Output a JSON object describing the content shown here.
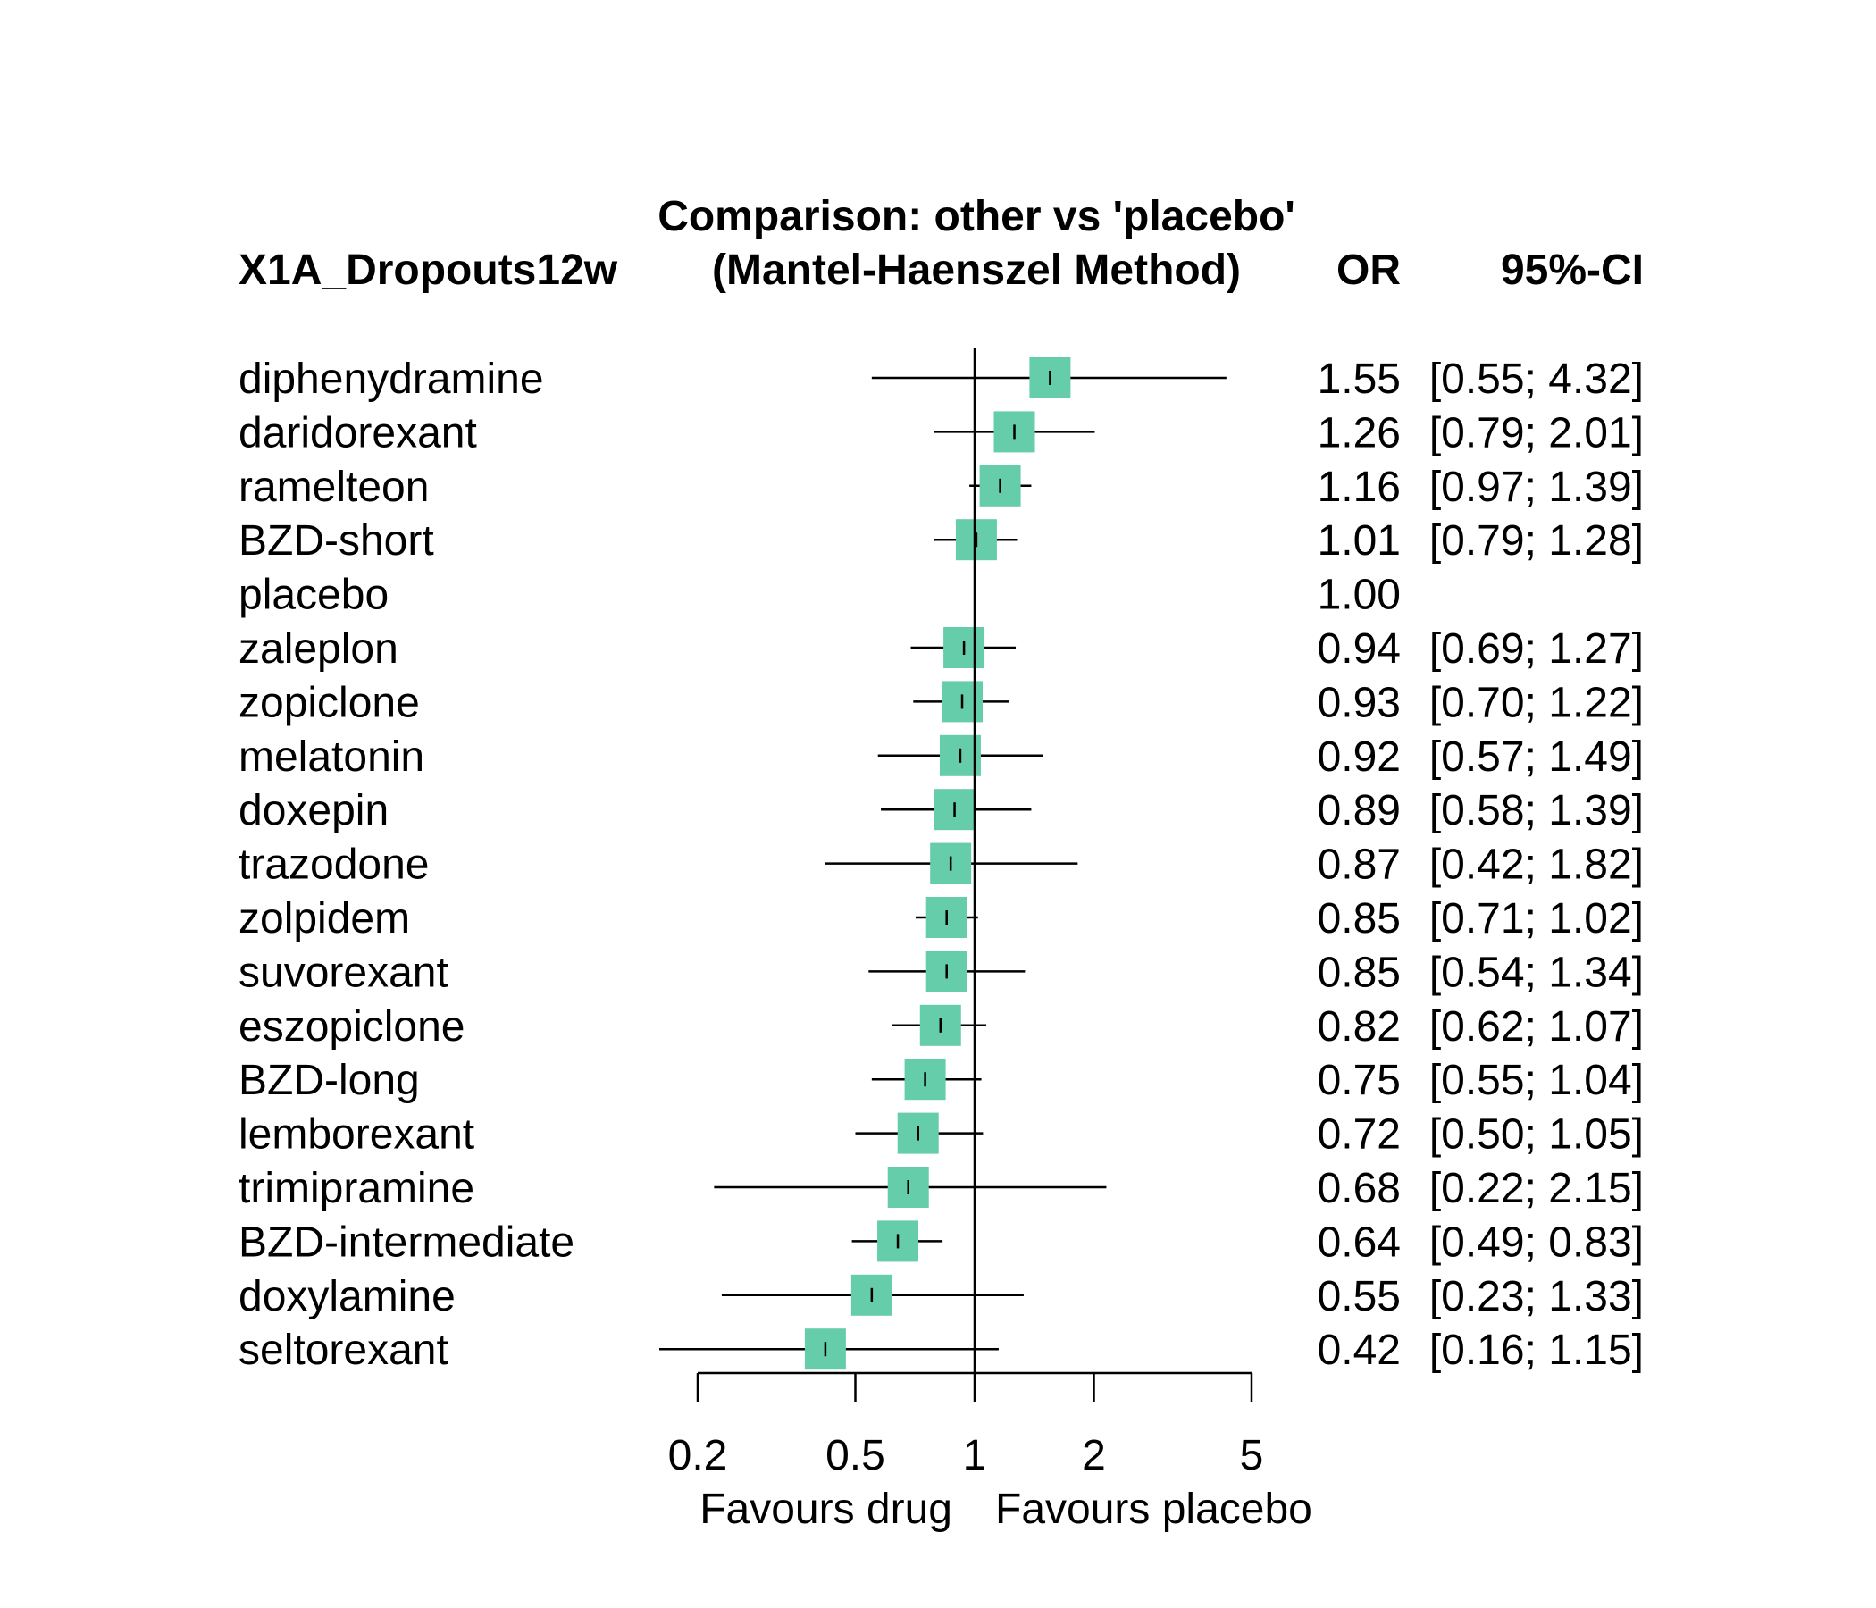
{
  "chart_data": {
    "type": "forest",
    "title": "Comparison: other vs 'placebo'",
    "subtitle": "(Mantel-Haenszel Method)",
    "outcome_label": "X1A_Dropouts12w",
    "or_header": "OR",
    "ci_header": "95%-CI",
    "x_scale": "log",
    "xlim": [
      0.2,
      5
    ],
    "x_ticks": [
      0.2,
      0.5,
      1,
      2,
      5
    ],
    "x_tick_labels": [
      "0.2",
      "0.5",
      "1",
      "2",
      "5"
    ],
    "xlabel_left": "Favours drug",
    "xlabel_right": "Favours placebo",
    "reference_line": 1,
    "marker_color": "#66CDAA",
    "rows": [
      {
        "name": "diphenydramine",
        "or": 1.55,
        "lower": 0.55,
        "upper": 4.32,
        "or_text": "1.55",
        "ci_text": "[0.55; 4.32]"
      },
      {
        "name": "daridorexant",
        "or": 1.26,
        "lower": 0.79,
        "upper": 2.01,
        "or_text": "1.26",
        "ci_text": "[0.79; 2.01]"
      },
      {
        "name": "ramelteon",
        "or": 1.16,
        "lower": 0.97,
        "upper": 1.39,
        "or_text": "1.16",
        "ci_text": "[0.97; 1.39]"
      },
      {
        "name": "BZD-short",
        "or": 1.01,
        "lower": 0.79,
        "upper": 1.28,
        "or_text": "1.01",
        "ci_text": "[0.79; 1.28]"
      },
      {
        "name": "placebo",
        "or": 1.0,
        "lower": null,
        "upper": null,
        "or_text": "1.00",
        "ci_text": ""
      },
      {
        "name": "zaleplon",
        "or": 0.94,
        "lower": 0.69,
        "upper": 1.27,
        "or_text": "0.94",
        "ci_text": "[0.69; 1.27]"
      },
      {
        "name": "zopiclone",
        "or": 0.93,
        "lower": 0.7,
        "upper": 1.22,
        "or_text": "0.93",
        "ci_text": "[0.70; 1.22]"
      },
      {
        "name": "melatonin",
        "or": 0.92,
        "lower": 0.57,
        "upper": 1.49,
        "or_text": "0.92",
        "ci_text": "[0.57; 1.49]"
      },
      {
        "name": "doxepin",
        "or": 0.89,
        "lower": 0.58,
        "upper": 1.39,
        "or_text": "0.89",
        "ci_text": "[0.58; 1.39]"
      },
      {
        "name": "trazodone",
        "or": 0.87,
        "lower": 0.42,
        "upper": 1.82,
        "or_text": "0.87",
        "ci_text": "[0.42; 1.82]"
      },
      {
        "name": "zolpidem",
        "or": 0.85,
        "lower": 0.71,
        "upper": 1.02,
        "or_text": "0.85",
        "ci_text": "[0.71; 1.02]"
      },
      {
        "name": "suvorexant",
        "or": 0.85,
        "lower": 0.54,
        "upper": 1.34,
        "or_text": "0.85",
        "ci_text": "[0.54; 1.34]"
      },
      {
        "name": "eszopiclone",
        "or": 0.82,
        "lower": 0.62,
        "upper": 1.07,
        "or_text": "0.82",
        "ci_text": "[0.62; 1.07]"
      },
      {
        "name": "BZD-long",
        "or": 0.75,
        "lower": 0.55,
        "upper": 1.04,
        "or_text": "0.75",
        "ci_text": "[0.55; 1.04]"
      },
      {
        "name": "lemborexant",
        "or": 0.72,
        "lower": 0.5,
        "upper": 1.05,
        "or_text": "0.72",
        "ci_text": "[0.50; 1.05]"
      },
      {
        "name": "trimipramine",
        "or": 0.68,
        "lower": 0.22,
        "upper": 2.15,
        "or_text": "0.68",
        "ci_text": "[0.22; 2.15]"
      },
      {
        "name": "BZD-intermediate",
        "or": 0.64,
        "lower": 0.49,
        "upper": 0.83,
        "or_text": "0.64",
        "ci_text": "[0.49; 0.83]"
      },
      {
        "name": "doxylamine",
        "or": 0.55,
        "lower": 0.23,
        "upper": 1.33,
        "or_text": "0.55",
        "ci_text": "[0.23; 1.33]"
      },
      {
        "name": "seltorexant",
        "or": 0.42,
        "lower": 0.16,
        "upper": 1.15,
        "or_text": "0.42",
        "ci_text": "[0.16; 1.15]"
      }
    ]
  }
}
